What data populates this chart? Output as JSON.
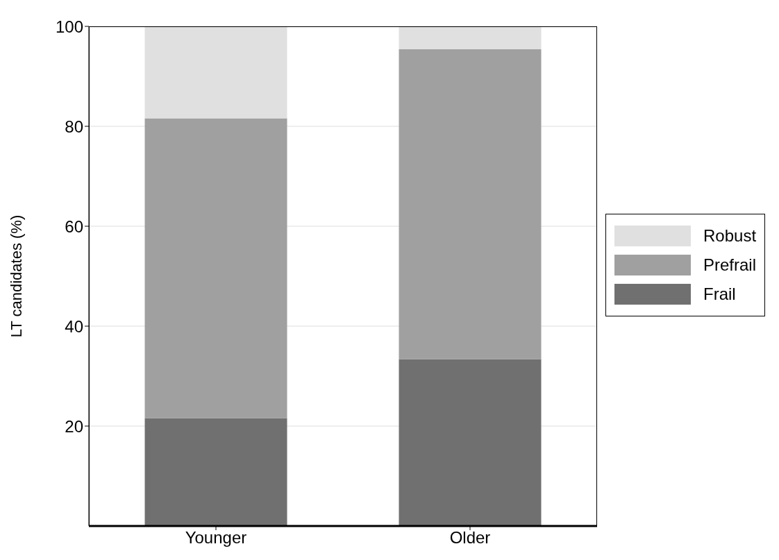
{
  "chart_data": {
    "type": "bar",
    "stacked": true,
    "ylabel": "LT candidates (%)",
    "categories": [
      "Younger",
      "Older"
    ],
    "series": [
      {
        "name": "Frail",
        "color": "#707070",
        "values": [
          21.6,
          33.4
        ]
      },
      {
        "name": "Prefrail",
        "color": "#a0a0a0",
        "values": [
          60.0,
          62.0
        ]
      },
      {
        "name": "Robust",
        "color": "#e0e0e0",
        "values": [
          18.4,
          4.6
        ]
      }
    ],
    "ylim": [
      0,
      100
    ],
    "yticks": [
      20,
      40,
      60,
      80,
      100
    ],
    "grid": "y",
    "legend": "right"
  }
}
